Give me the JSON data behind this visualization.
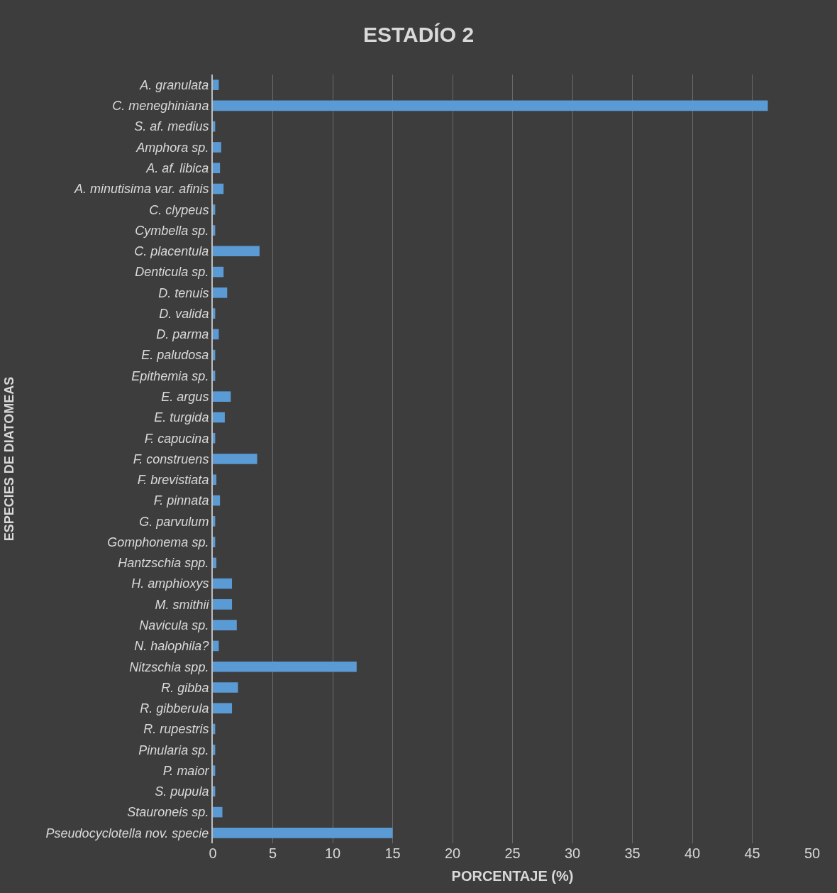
{
  "chart_data": {
    "type": "bar",
    "orientation": "horizontal",
    "title": "ESTADÍO 2",
    "xlabel": "PORCENTAJE (%)",
    "ylabel": "ESPECIES DE DIATOMEAS",
    "categories": [
      "A. granulata",
      "C. meneghiniana",
      "S. af. medius",
      "Amphora sp.",
      "A. af. libica",
      "A. minutisima var. afinis",
      "C. clypeus",
      "Cymbella sp.",
      "C. placentula",
      "Denticula sp.",
      "D. tenuis",
      "D. valida",
      "D. parma",
      "E. paludosa",
      "Epithemia sp.",
      "E. argus",
      "E. turgida",
      "F. capucina",
      "F. construens",
      "F. brevistiata",
      "F. pinnata",
      "G. parvulum",
      "Gomphonema sp.",
      "Hantzschia spp.",
      "H. amphioxys",
      "M. smithii",
      "Navicula sp.",
      "N. halophila?",
      "Nitzschia spp.",
      "R. gibba",
      "R. gibberula",
      "R. rupestris",
      "Pinularia sp.",
      "P. maior",
      "S. pupula",
      "Stauroneis sp.",
      "Pseudocyclotella nov. specie"
    ],
    "values": [
      0.5,
      46.3,
      0.2,
      0.7,
      0.6,
      0.9,
      0.2,
      0.2,
      3.9,
      0.9,
      1.2,
      0.2,
      0.5,
      0.2,
      0.2,
      1.5,
      1.0,
      0.2,
      3.7,
      0.3,
      0.6,
      0.2,
      0.2,
      0.3,
      1.6,
      1.6,
      2.0,
      0.5,
      12.0,
      2.1,
      1.6,
      0.2,
      0.2,
      0.2,
      0.2,
      0.8,
      15.0
    ],
    "color": "#5b9bd5",
    "xlim": [
      0,
      50
    ],
    "xticks": [
      0,
      5,
      10,
      15,
      20,
      25,
      30,
      35,
      40,
      45,
      50
    ],
    "grid": "x"
  }
}
